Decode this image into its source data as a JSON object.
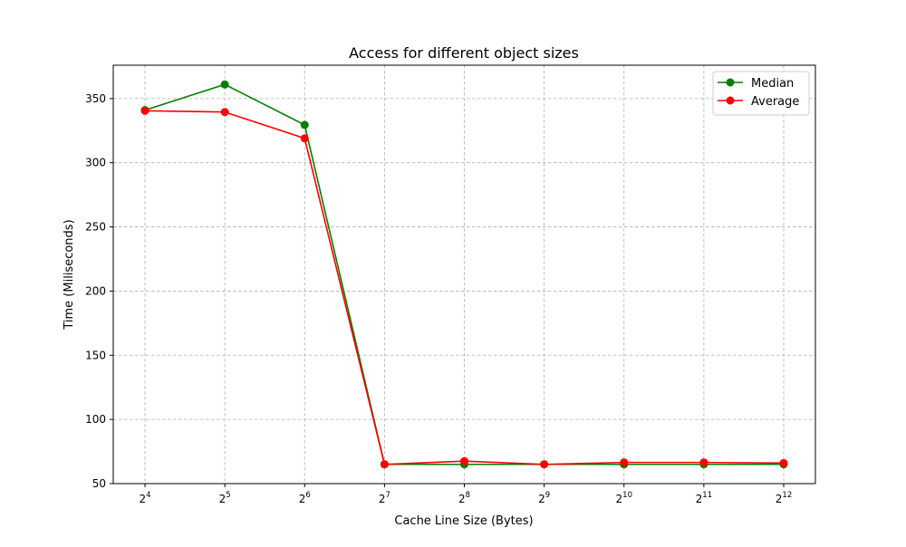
{
  "chart_data": {
    "type": "line",
    "title": "Access for different object sizes",
    "xlabel": "Cache Line Size (Bytes)",
    "ylabel": "Time (Miliseconds)",
    "x_base": "2",
    "x": [
      4,
      5,
      6,
      7,
      8,
      9,
      10,
      11,
      12
    ],
    "x_tick_labels": [
      "4",
      "5",
      "6",
      "7",
      "8",
      "9",
      "10",
      "11",
      "12"
    ],
    "ylim": [
      50,
      376
    ],
    "y_ticks": [
      50,
      100,
      150,
      200,
      250,
      300,
      350
    ],
    "grid": true,
    "legend_position": "top-right",
    "series": [
      {
        "name": "Median",
        "color": "#008000",
        "values": [
          341,
          361,
          329.5,
          65,
          65,
          65,
          65,
          65,
          65
        ]
      },
      {
        "name": "Average",
        "color": "#ff0000",
        "values": [
          340.5,
          339.5,
          319,
          65,
          67.5,
          65,
          66.5,
          66.5,
          66
        ]
      }
    ]
  }
}
